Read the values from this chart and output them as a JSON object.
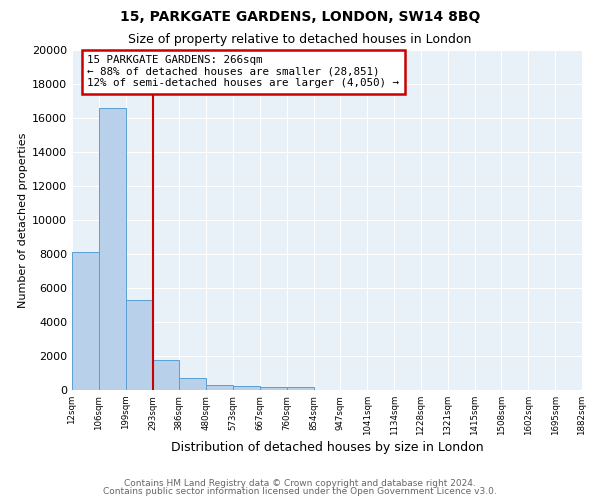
{
  "title": "15, PARKGATE GARDENS, LONDON, SW14 8BQ",
  "subtitle": "Size of property relative to detached houses in London",
  "xlabel": "Distribution of detached houses by size in London",
  "ylabel": "Number of detached properties",
  "bar_values": [
    8100,
    16600,
    5300,
    1750,
    700,
    320,
    230,
    200,
    170,
    0,
    0,
    0,
    0,
    0,
    0,
    0,
    0,
    0,
    0
  ],
  "n_bars": 19,
  "bar_color": "#b8d0ea",
  "bar_edge_color": "#5a9fd4",
  "background_color": "#e8f0f8",
  "grid_color": "#ffffff",
  "vline_x": 3.0,
  "vline_color": "#cc0000",
  "annotation_title": "15 PARKGATE GARDENS: 266sqm",
  "annotation_line1": "← 88% of detached houses are smaller (28,851)",
  "annotation_line2": "12% of semi-detached houses are larger (4,050) →",
  "annotation_box_edgecolor": "#cc0000",
  "ylim": [
    0,
    20000
  ],
  "yticks": [
    0,
    2000,
    4000,
    6000,
    8000,
    10000,
    12000,
    14000,
    16000,
    18000,
    20000
  ],
  "xtick_labels": [
    "12sqm",
    "106sqm",
    "199sqm",
    "293sqm",
    "386sqm",
    "480sqm",
    "573sqm",
    "667sqm",
    "760sqm",
    "854sqm",
    "947sqm",
    "1041sqm",
    "1134sqm",
    "1228sqm",
    "1321sqm",
    "1415sqm",
    "1508sqm",
    "1602sqm",
    "1695sqm",
    "1882sqm"
  ],
  "footer_line1": "Contains HM Land Registry data © Crown copyright and database right 2024.",
  "footer_line2": "Contains public sector information licensed under the Open Government Licence v3.0."
}
